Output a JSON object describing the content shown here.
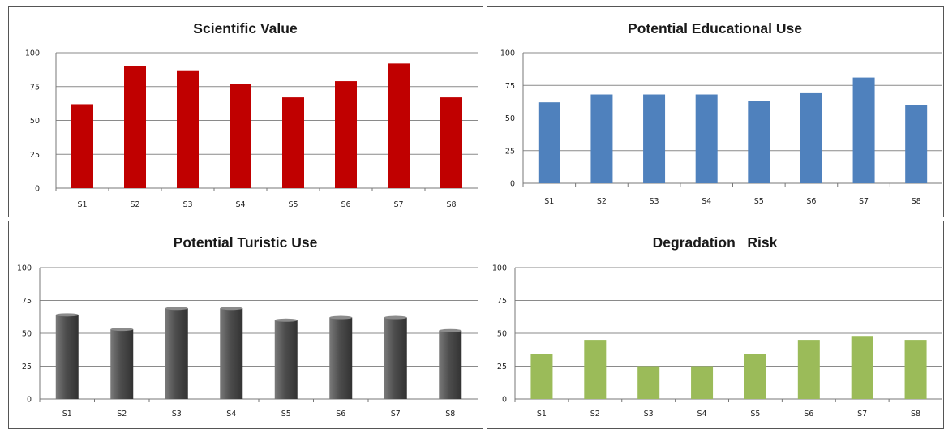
{
  "chart_data": [
    {
      "type": "bar",
      "title": "Scientific Value",
      "categories": [
        "S1",
        "S2",
        "S3",
        "S4",
        "S5",
        "S6",
        "S7",
        "S8"
      ],
      "values": [
        62,
        90,
        87,
        77,
        67,
        79,
        92,
        67
      ],
      "color": "#c00000",
      "yticks": [
        "0",
        "25",
        "50",
        "75",
        "100"
      ],
      "ylim": [
        0,
        100
      ],
      "grid": true,
      "xlabel": "",
      "ylabel": ""
    },
    {
      "type": "bar",
      "title": "Potential Educational Use",
      "categories": [
        "S1",
        "S2",
        "S3",
        "S4",
        "S5",
        "S6",
        "S7",
        "S8"
      ],
      "values": [
        62,
        68,
        68,
        68,
        63,
        69,
        81,
        60
      ],
      "color": "#4f81bd",
      "yticks": [
        "0",
        "25",
        "50",
        "75",
        "100"
      ],
      "ylim": [
        0,
        100
      ],
      "grid": true,
      "xlabel": "",
      "ylabel": ""
    },
    {
      "type": "bar",
      "title": "Potential Turistic Use",
      "categories": [
        "S1",
        "S2",
        "S3",
        "S4",
        "S5",
        "S6",
        "S7",
        "S8"
      ],
      "values": [
        64,
        53,
        69,
        69,
        60,
        62,
        62,
        52
      ],
      "color": "#4d4d4d",
      "yticks": [
        "0",
        "25",
        "50",
        "75",
        "100"
      ],
      "ylim": [
        0,
        100
      ],
      "grid": true,
      "xlabel": "",
      "ylabel": ""
    },
    {
      "type": "bar",
      "title": "Degradation   Risk",
      "categories": [
        "S1",
        "S2",
        "S3",
        "S4",
        "S5",
        "S6",
        "S7",
        "S8"
      ],
      "values": [
        34,
        45,
        25,
        25,
        34,
        45,
        48,
        45
      ],
      "color": "#9bbb59",
      "yticks": [
        "0",
        "25",
        "50",
        "75",
        "100"
      ],
      "ylim": [
        0,
        100
      ],
      "grid": true,
      "xlabel": "",
      "ylabel": ""
    }
  ]
}
